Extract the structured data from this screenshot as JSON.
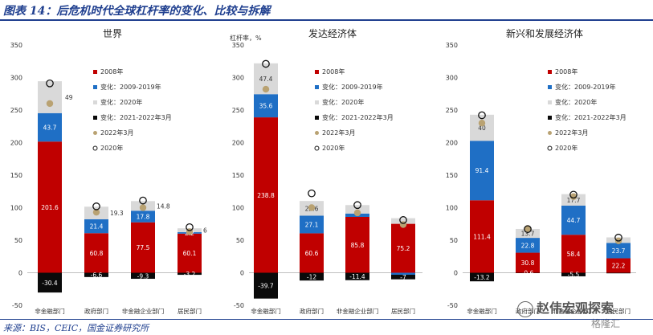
{
  "header": {
    "title": "图表 14：后危机时代全球杠杆率的变化、比较与拆解"
  },
  "footer": {
    "source": "来源：BIS，CEIC，国金证券研究所"
  },
  "watermark": {
    "name": "赵伟宏观探索",
    "brand": "格隆汇"
  },
  "colors": {
    "s2008": "#c00000",
    "s0919": "#1f6fc5",
    "s2020": "#d9d9d9",
    "s2122": "#0a0a0a",
    "m2203": "#b9a272",
    "header": "#1f3f8f"
  },
  "chart_data": [
    {
      "type": "bar",
      "stacked": true,
      "title": "世界",
      "ylabel": "",
      "ylim": [
        -50,
        350
      ],
      "yticks": [
        "350",
        "300",
        "250",
        "200",
        "150",
        "100",
        "50",
        "0",
        "-50"
      ],
      "categories": [
        "非金融部门",
        "政府部门",
        "非金融企业部门",
        "居民部门"
      ],
      "series": [
        {
          "name": "2008年",
          "values": [
            201.6,
            60.8,
            77.5,
            60.1
          ]
        },
        {
          "name": "变化：2009-2019年",
          "values": [
            43.7,
            21.4,
            17.8,
            2.2
          ]
        },
        {
          "name": "变化：2020年",
          "values": [
            49,
            19.3,
            14.8,
            6
          ]
        },
        {
          "name": "变化：2021-2022年3月",
          "values": [
            -30.4,
            -6.6,
            -9.3,
            -3.2
          ]
        }
      ],
      "markers": [
        {
          "name": "2022年3月",
          "values": [
            260,
            93,
            100,
            63
          ]
        },
        {
          "name": "2020年",
          "values": [
            291,
            102,
            111,
            70
          ]
        }
      ],
      "bar_labels": [
        {
          "series": 0,
          "labels": [
            "201.6",
            "60.8",
            "77.5",
            "60.1"
          ],
          "dark": false
        },
        {
          "series": 1,
          "labels": [
            "43.7",
            "21.4",
            "17.8",
            "2.2"
          ],
          "dark": false
        },
        {
          "series": 2,
          "labels": [
            "49",
            "19.3",
            "14.8",
            "6"
          ],
          "dark": true
        },
        {
          "series": 3,
          "labels": [
            "-30.4",
            "-6.6",
            "-9.3",
            "-3.2"
          ],
          "dark": false
        }
      ],
      "legend": {
        "placement": "top-right",
        "entries": [
          "2008年",
          "变化：2009-2019年",
          "变化：2020年",
          "变化：2021-2022年3月",
          "2022年3月",
          "2020年"
        ]
      }
    },
    {
      "type": "bar",
      "stacked": true,
      "title": "发达经济体",
      "ylabel": "杠杆率，%",
      "ylim": [
        -50,
        350
      ],
      "yticks": [
        "350",
        "300",
        "250",
        "200",
        "150",
        "100",
        "50",
        "0",
        "-50"
      ],
      "categories": [
        "非金融部门",
        "政府部门",
        "非金融企业部门",
        "居民部门"
      ],
      "series": [
        {
          "name": "2008年",
          "values": [
            238.8,
            60.6,
            85.8,
            75.2
          ]
        },
        {
          "name": "变化：2009-2019年",
          "values": [
            35.6,
            27.1,
            5.2,
            -3.1
          ]
        },
        {
          "name": "变化：2020年",
          "values": [
            47.4,
            22.6,
            13,
            8.6
          ]
        },
        {
          "name": "变化：2021-2022年3月",
          "values": [
            -39.7,
            -12,
            -11.4,
            -7
          ]
        }
      ],
      "markers": [
        {
          "name": "2022年3月",
          "values": [
            282,
            100,
            92,
            74
          ]
        },
        {
          "name": "2020年",
          "values": [
            321,
            122,
            104,
            81
          ]
        }
      ],
      "bar_labels": [
        {
          "series": 0,
          "labels": [
            "238.8",
            "60.6",
            "85.8",
            "75.2"
          ],
          "dark": false
        },
        {
          "series": 1,
          "labels": [
            "35.6",
            "27.1",
            "",
            ""
          ],
          "dark": false
        },
        {
          "series": 2,
          "labels": [
            "47.4",
            "22.6",
            "",
            ""
          ],
          "dark": true
        },
        {
          "series": 3,
          "labels": [
            "-39.7",
            "-12",
            "-11.4",
            "-7"
          ],
          "dark": false
        }
      ],
      "legend": {
        "placement": "top-right",
        "entries": [
          "2008年",
          "变化：2009-2019年",
          "变化：2020年",
          "变化：2021-2022年3月",
          "2022年3月",
          "2020年"
        ]
      }
    },
    {
      "type": "bar",
      "stacked": true,
      "title": "新兴和发展经济体",
      "ylabel": "",
      "ylim": [
        -50,
        350
      ],
      "yticks": [
        "350",
        "300",
        "250",
        "200",
        "150",
        "100",
        "50",
        "0",
        "-50"
      ],
      "categories": [
        "非金融部门",
        "政府部门",
        "非金融企业部门",
        "居民部门"
      ],
      "series": [
        {
          "name": "2008年",
          "values": [
            111.4,
            30.8,
            58.4,
            22.2
          ]
        },
        {
          "name": "变化：2009-2019年",
          "values": [
            91.4,
            22.8,
            44.7,
            23.7
          ]
        },
        {
          "name": "变化：2020年",
          "values": [
            40,
            13.7,
            17.7,
            8.4
          ]
        },
        {
          "name": "变化：2021-2022年3月",
          "values": [
            -13.2,
            -0.6,
            -5.5,
            -0.9
          ]
        }
      ],
      "markers": [
        {
          "name": "2022年3月",
          "values": [
            230,
            68,
            117,
            49
          ]
        },
        {
          "name": "2020年",
          "values": [
            242,
            67,
            120,
            54
          ]
        }
      ],
      "bar_labels": [
        {
          "series": 0,
          "labels": [
            "111.4",
            "30.8",
            "58.4",
            "22.2"
          ],
          "dark": false
        },
        {
          "series": 1,
          "labels": [
            "91.4",
            "22.8",
            "44.7",
            "23.7"
          ],
          "dark": false
        },
        {
          "series": 2,
          "labels": [
            "40",
            "13.7",
            "17.7",
            ""
          ],
          "dark": true
        },
        {
          "series": 3,
          "labels": [
            "-13.2",
            "-0.6",
            "-5.5",
            ""
          ],
          "dark": false
        }
      ],
      "legend": {
        "placement": "top-right",
        "entries": [
          "2008年",
          "变化：2009-2019年",
          "变化：2020年",
          "变化：2021-2022年3月",
          "2022年3月",
          "2020年"
        ]
      }
    }
  ]
}
